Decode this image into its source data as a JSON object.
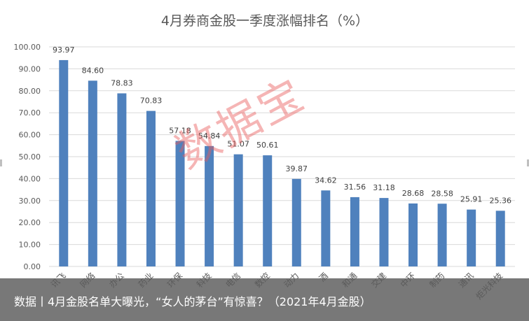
{
  "chart_data": {
    "type": "bar",
    "title": "4月券商金股一季度涨幅排名（%）",
    "categories": [
      "讯飞",
      "网络",
      "办公",
      "药业",
      "环保",
      "科技",
      "电信",
      "数控",
      "动力",
      "酒",
      "和通",
      "交建",
      "中环",
      "制药",
      "通讯",
      "炬光科技"
    ],
    "values": [
      93.97,
      84.6,
      78.83,
      70.83,
      57.18,
      54.84,
      51.07,
      50.61,
      39.87,
      34.62,
      31.56,
      31.18,
      28.68,
      28.58,
      25.91,
      25.36
    ],
    "value_labels": [
      "93.97",
      "84.60",
      "78.83",
      "70.83",
      "57.18",
      "54.84",
      "51.07",
      "50.61",
      "39.87",
      "34.62",
      "31.56",
      "31.18",
      "28.68",
      "28.58",
      "25.91",
      "25.36"
    ],
    "yticks": [
      "0.00",
      "10.00",
      "20.00",
      "30.00",
      "40.00",
      "50.00",
      "60.00",
      "70.00",
      "80.00",
      "90.00",
      "100.00"
    ],
    "ylim": [
      0,
      100
    ],
    "grid": true,
    "bar_color": "#4f81bd"
  },
  "watermark": "数据宝",
  "caption": "数据丨4月金股名单大曝光，“女人的茅台”有惊喜？（2021年4月金股）"
}
